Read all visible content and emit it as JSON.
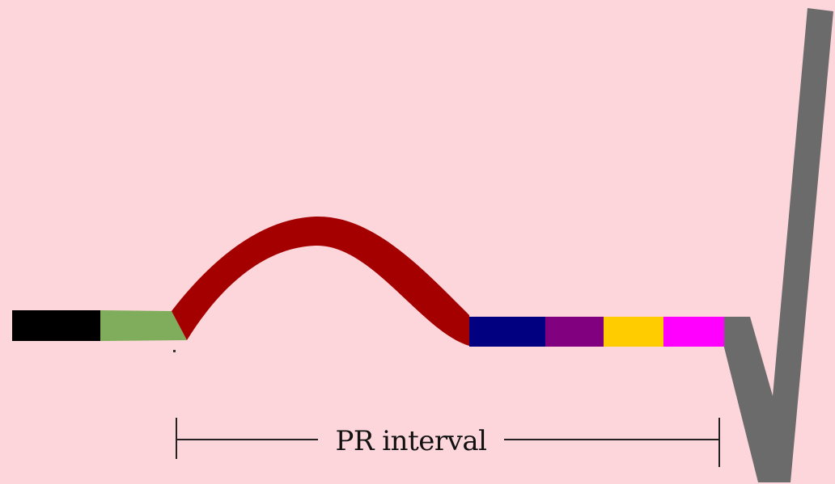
{
  "diagram": {
    "segment_colors": {
      "baseline_start": "#000000",
      "atrial_onset": "#80ad5c",
      "p_wave": "#a50000",
      "segment_1": "#000080",
      "segment_2": "#800080",
      "segment_3": "#ffcc00",
      "segment_4": "#ff00ff",
      "qrs_complex": "#6b6b6b"
    },
    "background": "#fdd6dc",
    "interval": {
      "label": "PR interval",
      "line_color": "#222222"
    }
  }
}
